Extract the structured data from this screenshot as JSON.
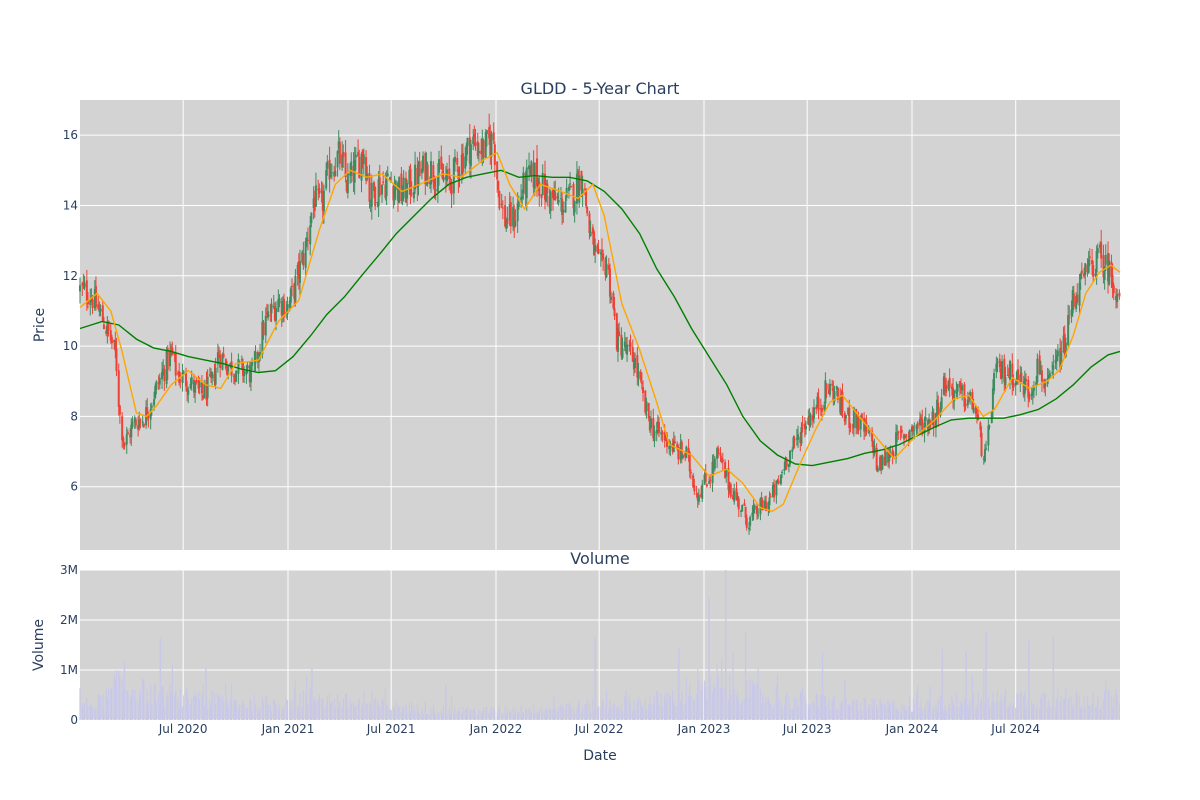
{
  "colors": {
    "plot_bg": "#d3d3d3",
    "grid": "#ffffff",
    "text": "#2a3f5f",
    "candle_up": "#3d8b5f",
    "candle_down": "#ef4136",
    "ma_short": "#ffa500",
    "ma_long": "#008000",
    "volume_bar": "#c8c8e8"
  },
  "chart_data": [
    {
      "type": "candlestick",
      "title": "GLDD - 5-Year Chart",
      "xlabel": "",
      "ylabel": "Price",
      "xlim": [
        "2020-01-02",
        "2024-12-31"
      ],
      "ylim": [
        4.2,
        17.0
      ],
      "y_ticks": [
        6,
        8,
        10,
        12,
        14,
        16
      ],
      "grid": true,
      "price_path": [
        [
          "2020-01-02",
          11.6
        ],
        [
          "2020-01-20",
          11.5
        ],
        [
          "2020-02-10",
          10.8
        ],
        [
          "2020-02-25",
          10.2
        ],
        [
          "2020-03-05",
          9.7
        ],
        [
          "2020-03-12",
          8.0
        ],
        [
          "2020-03-20",
          7.2
        ],
        [
          "2020-04-05",
          7.8
        ],
        [
          "2020-04-25",
          8.0
        ],
        [
          "2020-05-10",
          8.6
        ],
        [
          "2020-05-25",
          9.2
        ],
        [
          "2020-06-10",
          9.8
        ],
        [
          "2020-06-20",
          9.2
        ],
        [
          "2020-07-10",
          9.0
        ],
        [
          "2020-08-01",
          8.6
        ],
        [
          "2020-08-20",
          8.9
        ],
        [
          "2020-09-01",
          9.8
        ],
        [
          "2020-09-20",
          9.4
        ],
        [
          "2020-10-15",
          9.3
        ],
        [
          "2020-11-01",
          9.2
        ],
        [
          "2020-11-20",
          10.6
        ],
        [
          "2020-12-15",
          11.3
        ],
        [
          "2021-01-01",
          11.1
        ],
        [
          "2021-01-15",
          11.8
        ],
        [
          "2021-02-01",
          12.8
        ],
        [
          "2021-02-15",
          14.2
        ],
        [
          "2021-02-28",
          13.9
        ],
        [
          "2021-03-15",
          15.1
        ],
        [
          "2021-04-01",
          15.4
        ],
        [
          "2021-04-15",
          14.6
        ],
        [
          "2021-05-01",
          15.1
        ],
        [
          "2021-05-15",
          15.6
        ],
        [
          "2021-05-25",
          14.2
        ],
        [
          "2021-06-10",
          14.6
        ],
        [
          "2021-07-01",
          14.7
        ],
        [
          "2021-07-20",
          14.3
        ],
        [
          "2021-08-10",
          14.7
        ],
        [
          "2021-09-01",
          15.1
        ],
        [
          "2021-09-20",
          14.9
        ],
        [
          "2021-10-10",
          14.6
        ],
        [
          "2021-11-01",
          15.3
        ],
        [
          "2021-11-20",
          15.8
        ],
        [
          "2021-12-10",
          15.6
        ],
        [
          "2021-12-28",
          15.9
        ],
        [
          "2022-01-05",
          14.5
        ],
        [
          "2022-01-15",
          13.6
        ],
        [
          "2022-02-01",
          13.6
        ],
        [
          "2022-02-20",
          14.6
        ],
        [
          "2022-03-10",
          14.9
        ],
        [
          "2022-04-01",
          14.3
        ],
        [
          "2022-04-25",
          14.0
        ],
        [
          "2022-05-15",
          14.3
        ],
        [
          "2022-06-01",
          14.9
        ],
        [
          "2022-06-15",
          13.2
        ],
        [
          "2022-07-01",
          12.2
        ],
        [
          "2022-07-15",
          12.4
        ],
        [
          "2022-08-01",
          10.2
        ],
        [
          "2022-08-15",
          9.9
        ],
        [
          "2022-09-01",
          9.6
        ],
        [
          "2022-09-20",
          8.2
        ],
        [
          "2022-10-05",
          7.6
        ],
        [
          "2022-10-25",
          7.4
        ],
        [
          "2022-11-15",
          7.0
        ],
        [
          "2022-12-01",
          6.9
        ],
        [
          "2022-12-20",
          5.8
        ],
        [
          "2023-01-10",
          6.3
        ],
        [
          "2023-01-25",
          6.9
        ],
        [
          "2023-02-10",
          6.2
        ],
        [
          "2023-03-01",
          5.6
        ],
        [
          "2023-03-20",
          5.0
        ],
        [
          "2023-04-10",
          5.4
        ],
        [
          "2023-04-25",
          5.6
        ],
        [
          "2023-05-10",
          6.0
        ],
        [
          "2023-05-25",
          6.8
        ],
        [
          "2023-06-10",
          7.2
        ],
        [
          "2023-06-25",
          7.8
        ],
        [
          "2023-07-10",
          8.1
        ],
        [
          "2023-07-25",
          8.4
        ],
        [
          "2023-08-05",
          8.8
        ],
        [
          "2023-08-20",
          8.7
        ],
        [
          "2023-09-05",
          8.0
        ],
        [
          "2023-09-25",
          7.9
        ],
        [
          "2023-10-10",
          7.6
        ],
        [
          "2023-10-25",
          7.2
        ],
        [
          "2023-11-01",
          6.5
        ],
        [
          "2023-11-20",
          6.9
        ],
        [
          "2023-12-10",
          7.4
        ],
        [
          "2023-12-28",
          7.6
        ],
        [
          "2024-01-20",
          7.8
        ],
        [
          "2024-02-10",
          8.0
        ],
        [
          "2024-02-28",
          9.0
        ],
        [
          "2024-03-15",
          8.7
        ],
        [
          "2024-04-05",
          8.5
        ],
        [
          "2024-04-20",
          8.3
        ],
        [
          "2024-05-01",
          7.2
        ],
        [
          "2024-05-10",
          6.8
        ],
        [
          "2024-05-25",
          9.2
        ],
        [
          "2024-06-15",
          9.3
        ],
        [
          "2024-07-05",
          9.1
        ],
        [
          "2024-07-25",
          8.7
        ],
        [
          "2024-08-10",
          9.5
        ],
        [
          "2024-08-25",
          8.7
        ],
        [
          "2024-09-10",
          9.5
        ],
        [
          "2024-09-25",
          10.0
        ],
        [
          "2024-10-10",
          11.4
        ],
        [
          "2024-10-25",
          11.8
        ],
        [
          "2024-11-10",
          12.3
        ],
        [
          "2024-11-25",
          12.5
        ],
        [
          "2024-12-10",
          12.2
        ],
        [
          "2024-12-31",
          11.4
        ]
      ],
      "ma_short": [
        [
          "2020-01-02",
          11.1
        ],
        [
          "2020-02-01",
          11.5
        ],
        [
          "2020-02-25",
          11.0
        ],
        [
          "2020-03-15",
          9.9
        ],
        [
          "2020-04-10",
          8.1
        ],
        [
          "2020-04-28",
          8.0
        ],
        [
          "2020-05-15",
          8.3
        ],
        [
          "2020-06-10",
          8.9
        ],
        [
          "2020-07-10",
          9.3
        ],
        [
          "2020-08-10",
          8.9
        ],
        [
          "2020-09-05",
          8.8
        ],
        [
          "2020-10-01",
          9.5
        ],
        [
          "2020-11-10",
          9.6
        ],
        [
          "2020-12-15",
          10.7
        ],
        [
          "2021-01-20",
          11.3
        ],
        [
          "2021-02-25",
          13.3
        ],
        [
          "2021-03-25",
          14.6
        ],
        [
          "2021-04-20",
          15.0
        ],
        [
          "2021-05-20",
          14.8
        ],
        [
          "2021-06-15",
          14.9
        ],
        [
          "2021-07-20",
          14.4
        ],
        [
          "2021-08-20",
          14.6
        ],
        [
          "2021-10-01",
          14.9
        ],
        [
          "2021-11-01",
          14.8
        ],
        [
          "2021-12-10",
          15.3
        ],
        [
          "2022-01-03",
          15.5
        ],
        [
          "2022-01-25",
          14.6
        ],
        [
          "2022-02-20",
          13.9
        ],
        [
          "2022-03-20",
          14.6
        ],
        [
          "2022-04-25",
          14.4
        ],
        [
          "2022-05-25",
          14.2
        ],
        [
          "2022-06-20",
          14.6
        ],
        [
          "2022-07-10",
          13.7
        ],
        [
          "2022-08-10",
          11.2
        ],
        [
          "2022-09-10",
          9.9
        ],
        [
          "2022-10-10",
          8.4
        ],
        [
          "2022-11-01",
          7.2
        ],
        [
          "2022-12-10",
          6.9
        ],
        [
          "2023-01-10",
          6.3
        ],
        [
          "2023-02-10",
          6.5
        ],
        [
          "2023-03-10",
          6.1
        ],
        [
          "2023-04-10",
          5.4
        ],
        [
          "2023-05-01",
          5.3
        ],
        [
          "2023-05-20",
          5.5
        ],
        [
          "2023-06-20",
          6.7
        ],
        [
          "2023-07-15",
          7.6
        ],
        [
          "2023-08-10",
          8.4
        ],
        [
          "2023-09-01",
          8.6
        ],
        [
          "2023-10-10",
          7.8
        ],
        [
          "2023-11-15",
          7.1
        ],
        [
          "2023-12-01",
          6.8
        ],
        [
          "2024-01-05",
          7.4
        ],
        [
          "2024-02-10",
          7.9
        ],
        [
          "2024-03-15",
          8.5
        ],
        [
          "2024-04-10",
          8.6
        ],
        [
          "2024-05-05",
          8.0
        ],
        [
          "2024-05-25",
          8.2
        ],
        [
          "2024-06-25",
          9.1
        ],
        [
          "2024-07-25",
          8.8
        ],
        [
          "2024-08-25",
          9.0
        ],
        [
          "2024-09-15",
          9.3
        ],
        [
          "2024-10-10",
          10.3
        ],
        [
          "2024-11-01",
          11.5
        ],
        [
          "2024-11-25",
          12.1
        ],
        [
          "2024-12-15",
          12.3
        ],
        [
          "2024-12-31",
          12.1
        ]
      ],
      "ma_long": [
        [
          "2020-01-02",
          10.5
        ],
        [
          "2020-02-10",
          10.7
        ],
        [
          "2020-03-10",
          10.6
        ],
        [
          "2020-04-10",
          10.2
        ],
        [
          "2020-05-10",
          9.95
        ],
        [
          "2020-06-10",
          9.85
        ],
        [
          "2020-07-10",
          9.7
        ],
        [
          "2020-08-10",
          9.6
        ],
        [
          "2020-09-10",
          9.5
        ],
        [
          "2020-10-10",
          9.35
        ],
        [
          "2020-11-10",
          9.25
        ],
        [
          "2020-12-10",
          9.3
        ],
        [
          "2021-01-10",
          9.7
        ],
        [
          "2021-02-10",
          10.3
        ],
        [
          "2021-03-10",
          10.9
        ],
        [
          "2021-04-10",
          11.4
        ],
        [
          "2021-05-10",
          12.0
        ],
        [
          "2021-06-10",
          12.6
        ],
        [
          "2021-07-10",
          13.2
        ],
        [
          "2021-08-10",
          13.7
        ],
        [
          "2021-09-10",
          14.2
        ],
        [
          "2021-10-10",
          14.6
        ],
        [
          "2021-11-10",
          14.8
        ],
        [
          "2021-12-10",
          14.9
        ],
        [
          "2022-01-10",
          15.0
        ],
        [
          "2022-02-10",
          14.8
        ],
        [
          "2022-03-10",
          14.85
        ],
        [
          "2022-04-10",
          14.8
        ],
        [
          "2022-05-10",
          14.8
        ],
        [
          "2022-06-10",
          14.7
        ],
        [
          "2022-07-10",
          14.4
        ],
        [
          "2022-08-10",
          13.9
        ],
        [
          "2022-09-10",
          13.2
        ],
        [
          "2022-10-10",
          12.2
        ],
        [
          "2022-11-10",
          11.4
        ],
        [
          "2022-12-10",
          10.5
        ],
        [
          "2023-01-10",
          9.7
        ],
        [
          "2023-02-10",
          8.9
        ],
        [
          "2023-03-10",
          8.0
        ],
        [
          "2023-04-10",
          7.3
        ],
        [
          "2023-05-10",
          6.9
        ],
        [
          "2023-06-10",
          6.65
        ],
        [
          "2023-07-10",
          6.6
        ],
        [
          "2023-08-10",
          6.7
        ],
        [
          "2023-09-10",
          6.8
        ],
        [
          "2023-10-10",
          6.95
        ],
        [
          "2023-11-10",
          7.05
        ],
        [
          "2023-12-10",
          7.2
        ],
        [
          "2024-01-10",
          7.45
        ],
        [
          "2024-02-10",
          7.7
        ],
        [
          "2024-03-10",
          7.9
        ],
        [
          "2024-04-10",
          7.95
        ],
        [
          "2024-05-10",
          7.95
        ],
        [
          "2024-06-10",
          7.95
        ],
        [
          "2024-07-10",
          8.05
        ],
        [
          "2024-08-10",
          8.2
        ],
        [
          "2024-09-10",
          8.5
        ],
        [
          "2024-10-10",
          8.9
        ],
        [
          "2024-11-10",
          9.4
        ],
        [
          "2024-12-10",
          9.75
        ],
        [
          "2024-12-31",
          9.85
        ]
      ]
    },
    {
      "type": "bar",
      "title": "Volume",
      "xlabel": "Date",
      "ylabel": "Volume",
      "xlim": [
        "2020-01-02",
        "2024-12-31"
      ],
      "ylim": [
        0,
        3000000
      ],
      "y_ticks": [
        0,
        1000000,
        2000000,
        3000000
      ],
      "y_tick_labels": [
        "0",
        "1M",
        "2M",
        "3M"
      ],
      "x_ticks": [
        "2020-07-01",
        "2021-01-01",
        "2021-07-01",
        "2022-01-01",
        "2022-07-01",
        "2023-01-01",
        "2023-07-01",
        "2024-01-01",
        "2024-07-01"
      ],
      "x_tick_labels": [
        "Jul 2020",
        "Jan 2021",
        "Jul 2021",
        "Jan 2022",
        "Jul 2022",
        "Jan 2023",
        "Jul 2023",
        "Jan 2024",
        "Jul 2024"
      ],
      "grid": true,
      "volume_profile": [
        [
          "2020-01-02",
          300000
        ],
        [
          "2020-02-15",
          450000
        ],
        [
          "2020-03-10",
          800000
        ],
        [
          "2020-04-01",
          700000
        ],
        [
          "2020-06-01",
          500000
        ],
        [
          "2020-09-01",
          420000
        ],
        [
          "2020-12-01",
          360000
        ],
        [
          "2021-02-01",
          520000
        ],
        [
          "2021-05-01",
          380000
        ],
        [
          "2021-09-01",
          250000
        ],
        [
          "2021-12-01",
          200000
        ],
        [
          "2022-03-01",
          250000
        ],
        [
          "2022-07-01",
          330000
        ],
        [
          "2022-10-01",
          420000
        ],
        [
          "2023-01-01",
          650000
        ],
        [
          "2023-03-01",
          700000
        ],
        [
          "2023-05-01",
          450000
        ],
        [
          "2023-08-01",
          400000
        ],
        [
          "2023-11-01",
          320000
        ],
        [
          "2024-02-01",
          350000
        ],
        [
          "2024-05-01",
          450000
        ],
        [
          "2024-08-01",
          500000
        ],
        [
          "2024-11-01",
          480000
        ],
        [
          "2024-12-31",
          450000
        ]
      ],
      "volume_spikes": [
        [
          "2020-03-20",
          1150000
        ],
        [
          "2020-05-22",
          1650000
        ],
        [
          "2020-08-10",
          1050000
        ],
        [
          "2021-02-12",
          1050000
        ],
        [
          "2021-10-05",
          700000
        ],
        [
          "2022-06-24",
          1650000
        ],
        [
          "2022-11-18",
          1450000
        ],
        [
          "2023-01-10",
          2450000
        ],
        [
          "2023-02-08",
          3000000
        ],
        [
          "2023-03-15",
          1750000
        ],
        [
          "2023-07-28",
          1350000
        ],
        [
          "2024-02-23",
          1420000
        ],
        [
          "2024-04-05",
          1380000
        ],
        [
          "2024-05-10",
          1780000
        ],
        [
          "2024-07-24",
          1580000
        ],
        [
          "2024-09-05",
          1700000
        ]
      ]
    }
  ]
}
